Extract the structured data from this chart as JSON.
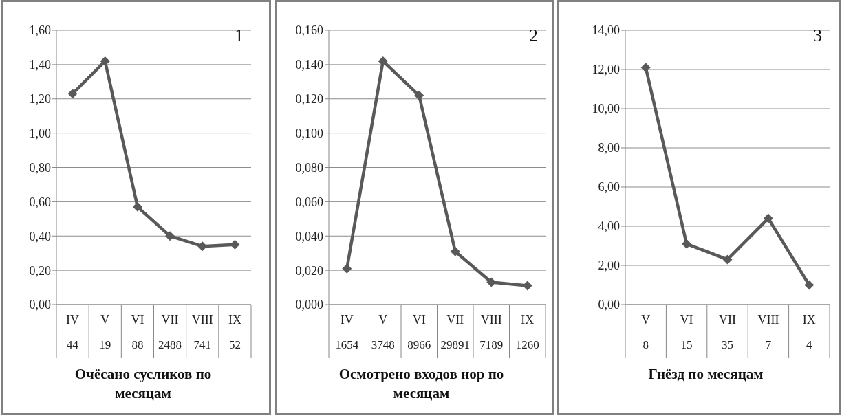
{
  "chart_data": [
    {
      "type": "line",
      "xlabel": "Очёсано сусликов по месяцам",
      "categories": [
        "IV",
        "V",
        "VI",
        "VII",
        "VIII",
        "IX"
      ],
      "series": [
        {
          "color": "#595959",
          "values": [
            1.23,
            1.42,
            0.57,
            0.4,
            0.34,
            0.35
          ]
        }
      ],
      "ylim": [
        0,
        1.6
      ],
      "yticks": [
        {
          "value": 0,
          "label": "0,00"
        },
        {
          "value": 0.2,
          "label": "0,20"
        },
        {
          "value": 0.4,
          "label": "0,40"
        },
        {
          "value": 0.6,
          "label": "0,60"
        },
        {
          "value": 0.8,
          "label": "0,80"
        },
        {
          "value": 1.0,
          "label": "1,00"
        },
        {
          "value": 1.2,
          "label": "1,20"
        },
        {
          "value": 1.4,
          "label": "1,40"
        },
        {
          "value": 1.6,
          "label": "1,60"
        }
      ],
      "grid": "y",
      "marker": "diamond",
      "line_style": "solid",
      "annotations": [
        "1",
        "44",
        "19",
        "88",
        "2488",
        "741",
        "52"
      ]
    },
    {
      "type": "line",
      "xlabel": "Осмотрено входов нор по месяцам",
      "categories": [
        "IV",
        "V",
        "VI",
        "VII",
        "VIII",
        "IX"
      ],
      "series": [
        {
          "color": "#595959",
          "values": [
            0.021,
            0.142,
            0.122,
            0.031,
            0.013,
            0.011
          ]
        }
      ],
      "ylim": [
        0,
        0.16
      ],
      "yticks": [
        {
          "value": 0,
          "label": "0,000"
        },
        {
          "value": 0.02,
          "label": "0,020"
        },
        {
          "value": 0.04,
          "label": "0,040"
        },
        {
          "value": 0.06,
          "label": "0,060"
        },
        {
          "value": 0.08,
          "label": "0,080"
        },
        {
          "value": 0.1,
          "label": "0,100"
        },
        {
          "value": 0.12,
          "label": "0,120"
        },
        {
          "value": 0.14,
          "label": "0,140"
        },
        {
          "value": 0.16,
          "label": "0,160"
        }
      ],
      "grid": "y",
      "marker": "diamond",
      "line_style": "solid",
      "annotations": [
        "2",
        "1654",
        "3748",
        "8966",
        "29891",
        "7189",
        "1260"
      ]
    },
    {
      "type": "line",
      "xlabel": "Гнёзд  по месяцам",
      "categories": [
        "V",
        "VI",
        "VII",
        "VIII",
        "IX"
      ],
      "series": [
        {
          "color": "#595959",
          "values": [
            12.1,
            3.1,
            2.3,
            4.4,
            1.0
          ]
        }
      ],
      "ylim": [
        0,
        14
      ],
      "yticks": [
        {
          "value": 0,
          "label": "0,00"
        },
        {
          "value": 2,
          "label": "2,00"
        },
        {
          "value": 4,
          "label": "4,00"
        },
        {
          "value": 6,
          "label": "6,00"
        },
        {
          "value": 8,
          "label": "8,00"
        },
        {
          "value": 10,
          "label": "10,00"
        },
        {
          "value": 12,
          "label": "12,00"
        },
        {
          "value": 14,
          "label": "14,00"
        }
      ],
      "grid": "y",
      "marker": "diamond",
      "line_style": "solid",
      "annotations": [
        "3",
        "8",
        "15",
        "35",
        "7",
        "4"
      ]
    }
  ]
}
